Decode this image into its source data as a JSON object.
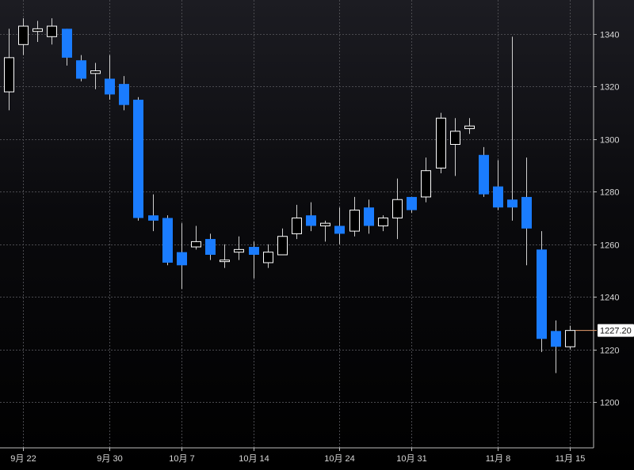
{
  "chart_data": {
    "type": "candlestick",
    "title": "",
    "xlabel": "",
    "ylabel": "",
    "ylim": [
      1185,
      1350
    ],
    "y_ticks": [
      1200,
      1220,
      1240,
      1260,
      1280,
      1300,
      1320,
      1340
    ],
    "x_tick_labels": [
      {
        "index": 1,
        "label": "9月 22"
      },
      {
        "index": 7,
        "label": "9月 30"
      },
      {
        "index": 12,
        "label": "10月 7"
      },
      {
        "index": 17,
        "label": "10月 14"
      },
      {
        "index": 23,
        "label": "10月 24"
      },
      {
        "index": 28,
        "label": "10月 31"
      },
      {
        "index": 34,
        "label": "11月 8"
      },
      {
        "index": 39,
        "label": "11月 15"
      }
    ],
    "grid": true,
    "last_price_label": "1227.20",
    "up_color": "#000000",
    "up_border_color": "#ffffff",
    "down_color": "#1a7cff",
    "wick_color": "#d0d0d0",
    "last_price_line_color": "#e8a070",
    "candles": [
      {
        "open": 1318,
        "high": 1342,
        "low": 1311,
        "close": 1331
      },
      {
        "open": 1336,
        "high": 1346,
        "low": 1332,
        "close": 1343
      },
      {
        "open": 1341,
        "high": 1345,
        "low": 1337,
        "close": 1342
      },
      {
        "open": 1339,
        "high": 1346,
        "low": 1336,
        "close": 1343
      },
      {
        "open": 1342,
        "high": 1342,
        "low": 1328,
        "close": 1331
      },
      {
        "open": 1330,
        "high": 1332,
        "low": 1322,
        "close": 1323
      },
      {
        "open": 1325,
        "high": 1329,
        "low": 1319,
        "close": 1326
      },
      {
        "open": 1323,
        "high": 1332,
        "low": 1315,
        "close": 1317
      },
      {
        "open": 1321,
        "high": 1324,
        "low": 1311,
        "close": 1313
      },
      {
        "open": 1315,
        "high": 1316,
        "low": 1269,
        "close": 1270
      },
      {
        "open": 1271,
        "high": 1279,
        "low": 1265,
        "close": 1269
      },
      {
        "open": 1270,
        "high": 1271,
        "low": 1252,
        "close": 1253
      },
      {
        "open": 1257,
        "high": 1268,
        "low": 1243,
        "close": 1252
      },
      {
        "open": 1259,
        "high": 1267,
        "low": 1258,
        "close": 1261
      },
      {
        "open": 1262,
        "high": 1264,
        "low": 1254,
        "close": 1256
      },
      {
        "open": 1254,
        "high": 1260,
        "low": 1251,
        "close": 1254
      },
      {
        "open": 1257,
        "high": 1263,
        "low": 1254,
        "close": 1258
      },
      {
        "open": 1259,
        "high": 1261,
        "low": 1247,
        "close": 1256
      },
      {
        "open": 1253,
        "high": 1260,
        "low": 1251,
        "close": 1257
      },
      {
        "open": 1256,
        "high": 1266,
        "low": 1256,
        "close": 1263
      },
      {
        "open": 1264,
        "high": 1275,
        "low": 1262,
        "close": 1270
      },
      {
        "open": 1271,
        "high": 1276,
        "low": 1265,
        "close": 1267
      },
      {
        "open": 1267,
        "high": 1269,
        "low": 1261,
        "close": 1268
      },
      {
        "open": 1267,
        "high": 1274,
        "low": 1260,
        "close": 1264
      },
      {
        "open": 1265,
        "high": 1278,
        "low": 1263,
        "close": 1273
      },
      {
        "open": 1274,
        "high": 1277,
        "low": 1264,
        "close": 1267
      },
      {
        "open": 1267,
        "high": 1271,
        "low": 1265,
        "close": 1270
      },
      {
        "open": 1270,
        "high": 1285,
        "low": 1262,
        "close": 1277
      },
      {
        "open": 1278,
        "high": 1278,
        "low": 1272,
        "close": 1273
      },
      {
        "open": 1278,
        "high": 1293,
        "low": 1276,
        "close": 1288
      },
      {
        "open": 1289,
        "high": 1310,
        "low": 1287,
        "close": 1308
      },
      {
        "open": 1298,
        "high": 1308,
        "low": 1286,
        "close": 1303
      },
      {
        "open": 1304,
        "high": 1308,
        "low": 1302,
        "close": 1305
      },
      {
        "open": 1294,
        "high": 1297,
        "low": 1278,
        "close": 1279
      },
      {
        "open": 1282,
        "high": 1292,
        "low": 1273,
        "close": 1274
      },
      {
        "open": 1277,
        "high": 1339,
        "low": 1269,
        "close": 1274
      },
      {
        "open": 1278,
        "high": 1293,
        "low": 1252,
        "close": 1266
      },
      {
        "open": 1258,
        "high": 1265,
        "low": 1219,
        "close": 1224
      },
      {
        "open": 1227,
        "high": 1231,
        "low": 1211,
        "close": 1221
      },
      {
        "open": 1221,
        "high": 1229,
        "low": 1220,
        "close": 1227.2
      }
    ]
  }
}
